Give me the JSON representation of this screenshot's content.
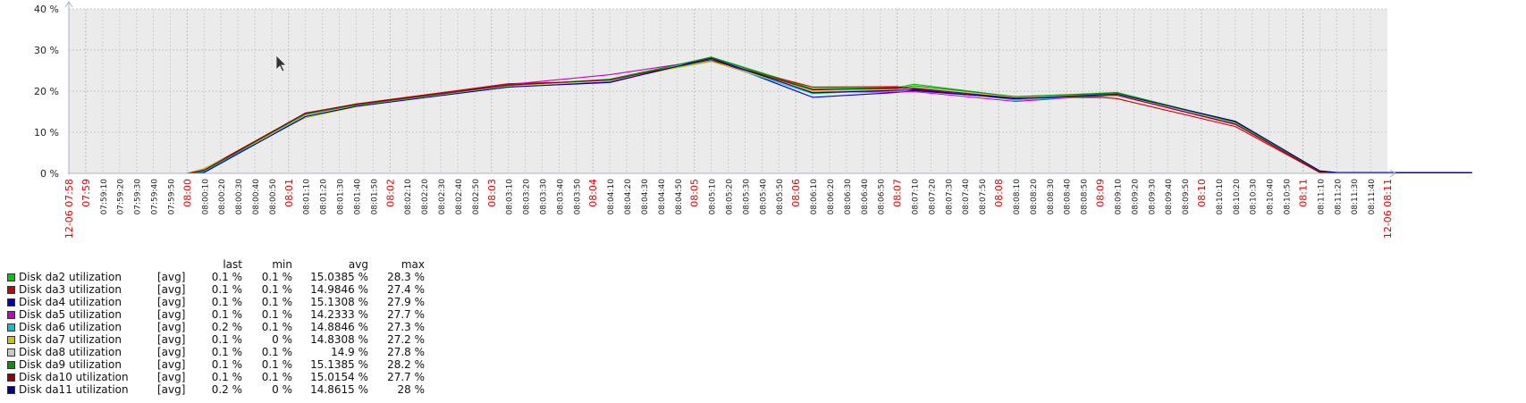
{
  "chart_data": {
    "type": "line",
    "title": "",
    "ylim": [
      0,
      40
    ],
    "y_ticks": [
      "0 %",
      "10 %",
      "20 %",
      "30 %",
      "40 %"
    ],
    "y_unit": "%",
    "grid": true,
    "x_start": "12-06 07:58",
    "x_end": "12-06 08:11",
    "x_ticks": [
      {
        "label": "12-06 07:58",
        "major": true
      },
      {
        "label": "07:59",
        "major": true
      },
      {
        "label": "07:59:10",
        "major": false
      },
      {
        "label": "07:59:20",
        "major": false
      },
      {
        "label": "07:59:30",
        "major": false
      },
      {
        "label": "07:59:40",
        "major": false
      },
      {
        "label": "07:59:50",
        "major": false
      },
      {
        "label": "08:00",
        "major": true
      },
      {
        "label": "08:00:10",
        "major": false
      },
      {
        "label": "08:00:20",
        "major": false
      },
      {
        "label": "08:00:30",
        "major": false
      },
      {
        "label": "08:00:40",
        "major": false
      },
      {
        "label": "08:00:50",
        "major": false
      },
      {
        "label": "08:01",
        "major": true
      },
      {
        "label": "08:01:10",
        "major": false
      },
      {
        "label": "08:01:20",
        "major": false
      },
      {
        "label": "08:01:30",
        "major": false
      },
      {
        "label": "08:01:40",
        "major": false
      },
      {
        "label": "08:01:50",
        "major": false
      },
      {
        "label": "08:02",
        "major": true
      },
      {
        "label": "08:02:10",
        "major": false
      },
      {
        "label": "08:02:20",
        "major": false
      },
      {
        "label": "08:02:30",
        "major": false
      },
      {
        "label": "08:02:40",
        "major": false
      },
      {
        "label": "08:02:50",
        "major": false
      },
      {
        "label": "08:03",
        "major": true
      },
      {
        "label": "08:03:10",
        "major": false
      },
      {
        "label": "08:03:20",
        "major": false
      },
      {
        "label": "08:03:30",
        "major": false
      },
      {
        "label": "08:03:40",
        "major": false
      },
      {
        "label": "08:03:50",
        "major": false
      },
      {
        "label": "08:04",
        "major": true
      },
      {
        "label": "08:04:10",
        "major": false
      },
      {
        "label": "08:04:20",
        "major": false
      },
      {
        "label": "08:04:30",
        "major": false
      },
      {
        "label": "08:04:40",
        "major": false
      },
      {
        "label": "08:04:50",
        "major": false
      },
      {
        "label": "08:05",
        "major": true
      },
      {
        "label": "08:05:10",
        "major": false
      },
      {
        "label": "08:05:20",
        "major": false
      },
      {
        "label": "08:05:30",
        "major": false
      },
      {
        "label": "08:05:40",
        "major": false
      },
      {
        "label": "08:05:50",
        "major": false
      },
      {
        "label": "08:06",
        "major": true
      },
      {
        "label": "08:06:10",
        "major": false
      },
      {
        "label": "08:06:20",
        "major": false
      },
      {
        "label": "08:06:30",
        "major": false
      },
      {
        "label": "08:06:40",
        "major": false
      },
      {
        "label": "08:06:50",
        "major": false
      },
      {
        "label": "08:07",
        "major": true
      },
      {
        "label": "08:07:10",
        "major": false
      },
      {
        "label": "08:07:20",
        "major": false
      },
      {
        "label": "08:07:30",
        "major": false
      },
      {
        "label": "08:07:40",
        "major": false
      },
      {
        "label": "08:07:50",
        "major": false
      },
      {
        "label": "08:08",
        "major": true
      },
      {
        "label": "08:08:10",
        "major": false
      },
      {
        "label": "08:08:20",
        "major": false
      },
      {
        "label": "08:08:30",
        "major": false
      },
      {
        "label": "08:08:40",
        "major": false
      },
      {
        "label": "08:08:50",
        "major": false
      },
      {
        "label": "08:09",
        "major": true
      },
      {
        "label": "08:09:10",
        "major": false
      },
      {
        "label": "08:09:20",
        "major": false
      },
      {
        "label": "08:09:30",
        "major": false
      },
      {
        "label": "08:09:40",
        "major": false
      },
      {
        "label": "08:09:50",
        "major": false
      },
      {
        "label": "08:10",
        "major": true
      },
      {
        "label": "08:10:10",
        "major": false
      },
      {
        "label": "08:10:20",
        "major": false
      },
      {
        "label": "08:10:30",
        "major": false
      },
      {
        "label": "08:10:40",
        "major": false
      },
      {
        "label": "08:10:50",
        "major": false
      },
      {
        "label": "08:11",
        "major": true
      },
      {
        "label": "08:11:10",
        "major": false
      },
      {
        "label": "08:11:20",
        "major": false
      },
      {
        "label": "08:11:30",
        "major": false
      },
      {
        "label": "08:11:40",
        "major": false
      },
      {
        "label": "12-06 08:11",
        "major": true
      }
    ],
    "times": [
      "07:58:00",
      "07:59:10",
      "07:59:20",
      "08:00:20",
      "08:00:50",
      "08:02:20",
      "08:03:20",
      "08:04:20",
      "08:05:20",
      "08:06:10",
      "08:06:20",
      "08:07:20",
      "08:08:10",
      "08:08:20",
      "08:09:30",
      "08:10:20",
      "08:10:30",
      "08:11:50"
    ],
    "series": [
      {
        "name": "Disk da2 utilization",
        "color": "#00c800",
        "values": [
          0,
          0,
          0.8,
          14.3,
          16.5,
          21.0,
          22.6,
          28.3,
          20.6,
          20.9,
          21.7,
          18.6,
          19.5,
          19.7,
          12.5,
          0.5,
          0.1,
          0.1
        ]
      },
      {
        "name": "Disk da3 utilization",
        "color": "#c80000",
        "values": [
          0,
          0,
          1.0,
          14.6,
          16.9,
          21.8,
          22.5,
          27.4,
          21.0,
          21.1,
          20.5,
          18.3,
          18.5,
          18.2,
          11.4,
          0.2,
          0.1,
          0.1
        ]
      },
      {
        "name": "Disk da4 utilization",
        "color": "#0000c8",
        "values": [
          0,
          0,
          0.3,
          14.0,
          16.6,
          21.2,
          22.2,
          27.9,
          18.5,
          19.7,
          20.1,
          18.2,
          19.3,
          19.2,
          12.6,
          0.4,
          0.1,
          0.1
        ]
      },
      {
        "name": "Disk da5 utilization",
        "color": "#c800c8",
        "values": [
          0,
          0,
          0.6,
          14.2,
          16.7,
          21.6,
          24.0,
          27.7,
          19.8,
          19.8,
          19.9,
          17.5,
          18.9,
          19.0,
          11.9,
          0.3,
          0.1,
          0.1
        ]
      },
      {
        "name": "Disk da6 utilization",
        "color": "#00c8c8",
        "values": [
          0,
          0,
          0.4,
          13.9,
          16.4,
          21.2,
          22.8,
          27.3,
          19.4,
          20.3,
          20.9,
          17.8,
          18.8,
          19.2,
          12.3,
          0.6,
          0.2,
          0.2
        ]
      },
      {
        "name": "Disk da7 utilization",
        "color": "#c8c800",
        "values": [
          0,
          0,
          1.2,
          13.5,
          16.2,
          21.3,
          22.7,
          27.2,
          19.9,
          20.4,
          21.0,
          18.5,
          19.2,
          19.3,
          12.1,
          0.4,
          0.1,
          0.1
        ]
      },
      {
        "name": "Disk da8 utilization",
        "color": "#c8c8c8",
        "values": [
          0,
          0,
          0.9,
          14.1,
          16.5,
          21.1,
          22.5,
          27.8,
          20.2,
          20.5,
          21.1,
          18.4,
          19.0,
          19.1,
          12.2,
          0.4,
          0.1,
          0.1
        ]
      },
      {
        "name": "Disk da9 utilization",
        "color": "#009600",
        "values": [
          0,
          0,
          0.7,
          14.4,
          16.6,
          21.4,
          22.9,
          28.2,
          20.4,
          20.6,
          21.3,
          18.7,
          19.4,
          19.6,
          12.4,
          0.5,
          0.1,
          0.1
        ]
      },
      {
        "name": "Disk da10 utilization",
        "color": "#960000",
        "values": [
          0,
          0,
          0.8,
          14.7,
          16.8,
          21.5,
          22.7,
          27.7,
          20.3,
          20.8,
          20.7,
          18.3,
          18.8,
          19.0,
          12.0,
          0.3,
          0.1,
          0.1
        ]
      },
      {
        "name": "Disk da11 utilization",
        "color": "#000096",
        "values": [
          0,
          0,
          0.2,
          13.8,
          16.3,
          21.0,
          22.1,
          28.0,
          19.6,
          20.2,
          20.3,
          18.1,
          19.1,
          19.3,
          12.7,
          0.6,
          0.2,
          0.2
        ]
      }
    ]
  },
  "legend": {
    "headers": {
      "last": "last",
      "min": "min",
      "avg": "avg",
      "max": "max"
    },
    "rows": [
      {
        "name": "Disk da2 utilization",
        "func": "[avg]",
        "last": "0.1 %",
        "min": "0.1 %",
        "avg": "15.0385 %",
        "max": "28.3 %",
        "color": "#00c800"
      },
      {
        "name": "Disk da3 utilization",
        "func": "[avg]",
        "last": "0.1 %",
        "min": "0.1 %",
        "avg": "14.9846 %",
        "max": "27.4 %",
        "color": "#c80000"
      },
      {
        "name": "Disk da4 utilization",
        "func": "[avg]",
        "last": "0.1 %",
        "min": "0.1 %",
        "avg": "15.1308 %",
        "max": "27.9 %",
        "color": "#0000c8"
      },
      {
        "name": "Disk da5 utilization",
        "func": "[avg]",
        "last": "0.1 %",
        "min": "0.1 %",
        "avg": "14.2333 %",
        "max": "27.7 %",
        "color": "#c800c8"
      },
      {
        "name": "Disk da6 utilization",
        "func": "[avg]",
        "last": "0.2 %",
        "min": "0.1 %",
        "avg": "14.8846 %",
        "max": "27.3 %",
        "color": "#00c8c8"
      },
      {
        "name": "Disk da7 utilization",
        "func": "[avg]",
        "last": "0.1 %",
        "min": "0 %",
        "avg": "14.8308 %",
        "max": "27.2 %",
        "color": "#c8c800"
      },
      {
        "name": "Disk da8 utilization",
        "func": "[avg]",
        "last": "0.1 %",
        "min": "0.1 %",
        "avg": "14.9 %",
        "max": "27.8 %",
        "color": "#c8c8c8"
      },
      {
        "name": "Disk da9 utilization",
        "func": "[avg]",
        "last": "0.1 %",
        "min": "0.1 %",
        "avg": "15.1385 %",
        "max": "28.2 %",
        "color": "#009600"
      },
      {
        "name": "Disk da10 utilization",
        "func": "[avg]",
        "last": "0.1 %",
        "min": "0.1 %",
        "avg": "15.0154 %",
        "max": "27.7 %",
        "color": "#960000"
      },
      {
        "name": "Disk da11 utilization",
        "func": "[avg]",
        "last": "0.2 %",
        "min": "0 %",
        "avg": "14.8615 %",
        "max": "28 %",
        "color": "#000096"
      }
    ]
  }
}
